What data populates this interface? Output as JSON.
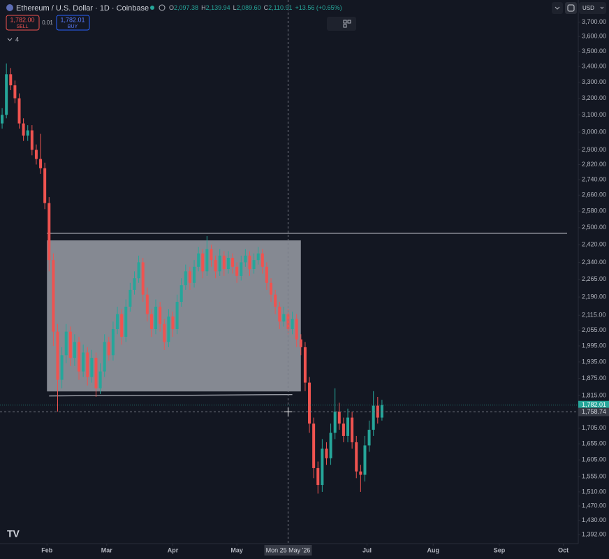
{
  "chart_data": {
    "type": "candlestick",
    "title": "Ethereum / U.S. Dollar · 1D · Coinbase",
    "ohlc": [
      {
        "label": "O",
        "value": "2,097.38"
      },
      {
        "label": "H",
        "value": "2,139.94"
      },
      {
        "label": "L",
        "value": "2,089.60"
      },
      {
        "label": "C",
        "value": "2,110.91"
      }
    ],
    "change": "+13.56 (+0.65%)",
    "trade": {
      "sell_price": "1,782.00",
      "sell_label": "SELL",
      "spread": "0.01",
      "buy_price": "1,782.01",
      "buy_label": "BUY"
    },
    "indicators_count": "4",
    "currency": "USD",
    "log_scale": true,
    "up_color": "#26a69a",
    "down_color": "#ef5350",
    "xlim": [
      10,
      281
    ],
    "xticks": [
      {
        "value": 32,
        "label": "Feb"
      },
      {
        "value": 60,
        "label": "Mar"
      },
      {
        "value": 91,
        "label": "Apr"
      },
      {
        "value": 121,
        "label": "May"
      },
      {
        "value": 182,
        "label": "Jul"
      },
      {
        "value": 213,
        "label": "Aug"
      },
      {
        "value": 244,
        "label": "Sep"
      },
      {
        "value": 274,
        "label": "Oct"
      }
    ],
    "ylim": [
      1368,
      3860
    ],
    "yticks": [
      {
        "value": 3700,
        "label": "3,700.00"
      },
      {
        "value": 3600,
        "label": "3,600.00"
      },
      {
        "value": 3500,
        "label": "3,500.00"
      },
      {
        "value": 3400,
        "label": "3,400.00"
      },
      {
        "value": 3300,
        "label": "3,300.00"
      },
      {
        "value": 3200,
        "label": "3,200.00"
      },
      {
        "value": 3100,
        "label": "3,100.00"
      },
      {
        "value": 3000,
        "label": "3,000.00"
      },
      {
        "value": 2900,
        "label": "2,900.00"
      },
      {
        "value": 2820,
        "label": "2,820.00"
      },
      {
        "value": 2740,
        "label": "2,740.00"
      },
      {
        "value": 2660,
        "label": "2,660.00"
      },
      {
        "value": 2580,
        "label": "2,580.00"
      },
      {
        "value": 2500,
        "label": "2,500.00"
      },
      {
        "value": 2420,
        "label": "2,420.00"
      },
      {
        "value": 2340,
        "label": "2,340.00"
      },
      {
        "value": 2265,
        "label": "2,265.00"
      },
      {
        "value": 2190,
        "label": "2,190.00"
      },
      {
        "value": 2115,
        "label": "2,115.00"
      },
      {
        "value": 2055,
        "label": "2,055.00"
      },
      {
        "value": 1995,
        "label": "1,995.00"
      },
      {
        "value": 1935,
        "label": "1,935.00"
      },
      {
        "value": 1875,
        "label": "1,875.00"
      },
      {
        "value": 1815,
        "label": "1,815.00"
      },
      {
        "value": 1705,
        "label": "1,705.00"
      },
      {
        "value": 1655,
        "label": "1,655.00"
      },
      {
        "value": 1605,
        "label": "1,605.00"
      },
      {
        "value": 1555,
        "label": "1,555.00"
      },
      {
        "value": 1510,
        "label": "1,510.00"
      },
      {
        "value": 1470,
        "label": "1,470.00"
      },
      {
        "value": 1430,
        "label": "1,430.00"
      },
      {
        "value": 1392,
        "label": "1,392.00"
      }
    ],
    "last_price": {
      "value": 1782.01,
      "label": "1,782.01"
    },
    "crosshair": {
      "x": {
        "value": 145,
        "label": "Mon 25 May '26"
      },
      "y": {
        "value": 1758.74,
        "label": "1,758.74"
      }
    },
    "horizontal_line": 2473,
    "rectangle": {
      "x": [
        32,
        151
      ],
      "y": [
        1829,
        2440
      ]
    },
    "trend_line": {
      "x": [
        33,
        147
      ],
      "y": [
        1813,
        1818
      ]
    },
    "candles": [
      {
        "x": 11,
        "o": 3050,
        "h": 3140,
        "l": 3020,
        "c": 3100
      },
      {
        "x": 13,
        "o": 3100,
        "h": 3420,
        "l": 3080,
        "c": 3350
      },
      {
        "x": 15,
        "o": 3350,
        "h": 3390,
        "l": 3250,
        "c": 3280
      },
      {
        "x": 17,
        "o": 3280,
        "h": 3310,
        "l": 3170,
        "c": 3200
      },
      {
        "x": 19,
        "o": 3200,
        "h": 3230,
        "l": 3020,
        "c": 3050
      },
      {
        "x": 21,
        "o": 3050,
        "h": 3080,
        "l": 2950,
        "c": 2980
      },
      {
        "x": 23,
        "o": 2980,
        "h": 3040,
        "l": 2950,
        "c": 3010
      },
      {
        "x": 25,
        "o": 3010,
        "h": 3040,
        "l": 2870,
        "c": 2900
      },
      {
        "x": 27,
        "o": 2900,
        "h": 2930,
        "l": 2820,
        "c": 2850
      },
      {
        "x": 29,
        "o": 2850,
        "h": 2990,
        "l": 2770,
        "c": 2800
      },
      {
        "x": 31,
        "o": 2800,
        "h": 2830,
        "l": 2590,
        "c": 2620
      },
      {
        "x": 33,
        "o": 2620,
        "h": 2650,
        "l": 2300,
        "c": 2350
      },
      {
        "x": 35,
        "o": 2350,
        "h": 2380,
        "l": 1995,
        "c": 2050
      },
      {
        "x": 37,
        "o": 2050,
        "h": 2080,
        "l": 1760,
        "c": 1870
      },
      {
        "x": 39,
        "o": 1870,
        "h": 1990,
        "l": 1840,
        "c": 1960
      },
      {
        "x": 41,
        "o": 1960,
        "h": 2080,
        "l": 1930,
        "c": 2050
      },
      {
        "x": 43,
        "o": 2050,
        "h": 2070,
        "l": 1920,
        "c": 1950
      },
      {
        "x": 45,
        "o": 1950,
        "h": 2040,
        "l": 1920,
        "c": 2010
      },
      {
        "x": 47,
        "o": 2010,
        "h": 2030,
        "l": 1870,
        "c": 1900
      },
      {
        "x": 49,
        "o": 1900,
        "h": 2000,
        "l": 1880,
        "c": 1970
      },
      {
        "x": 51,
        "o": 1970,
        "h": 1990,
        "l": 1850,
        "c": 1880
      },
      {
        "x": 53,
        "o": 1880,
        "h": 1980,
        "l": 1860,
        "c": 1950
      },
      {
        "x": 55,
        "o": 1950,
        "h": 1970,
        "l": 1810,
        "c": 1840
      },
      {
        "x": 57,
        "o": 1840,
        "h": 1930,
        "l": 1820,
        "c": 1900
      },
      {
        "x": 59,
        "o": 1900,
        "h": 2040,
        "l": 1880,
        "c": 2010
      },
      {
        "x": 61,
        "o": 2010,
        "h": 2030,
        "l": 1940,
        "c": 1960
      },
      {
        "x": 63,
        "o": 1960,
        "h": 2090,
        "l": 1940,
        "c": 2060
      },
      {
        "x": 65,
        "o": 2060,
        "h": 2150,
        "l": 2040,
        "c": 2120
      },
      {
        "x": 67,
        "o": 2120,
        "h": 2140,
        "l": 2000,
        "c": 2030
      },
      {
        "x": 69,
        "o": 2030,
        "h": 2180,
        "l": 2010,
        "c": 2150
      },
      {
        "x": 71,
        "o": 2150,
        "h": 2250,
        "l": 2130,
        "c": 2220
      },
      {
        "x": 73,
        "o": 2220,
        "h": 2300,
        "l": 2200,
        "c": 2270
      },
      {
        "x": 75,
        "o": 2270,
        "h": 2370,
        "l": 2250,
        "c": 2340
      },
      {
        "x": 77,
        "o": 2340,
        "h": 2360,
        "l": 2170,
        "c": 2200
      },
      {
        "x": 79,
        "o": 2200,
        "h": 2230,
        "l": 2090,
        "c": 2120
      },
      {
        "x": 81,
        "o": 2120,
        "h": 2140,
        "l": 2030,
        "c": 2060
      },
      {
        "x": 83,
        "o": 2060,
        "h": 2180,
        "l": 2040,
        "c": 2150
      },
      {
        "x": 85,
        "o": 2150,
        "h": 2170,
        "l": 2050,
        "c": 2080
      },
      {
        "x": 87,
        "o": 2080,
        "h": 2100,
        "l": 1980,
        "c": 2010
      },
      {
        "x": 89,
        "o": 2010,
        "h": 2140,
        "l": 1990,
        "c": 2110
      },
      {
        "x": 91,
        "o": 2110,
        "h": 2130,
        "l": 2030,
        "c": 2060
      },
      {
        "x": 93,
        "o": 2060,
        "h": 2200,
        "l": 2040,
        "c": 2170
      },
      {
        "x": 95,
        "o": 2170,
        "h": 2270,
        "l": 2150,
        "c": 2240
      },
      {
        "x": 97,
        "o": 2240,
        "h": 2330,
        "l": 2220,
        "c": 2300
      },
      {
        "x": 99,
        "o": 2300,
        "h": 2320,
        "l": 2220,
        "c": 2250
      },
      {
        "x": 101,
        "o": 2250,
        "h": 2350,
        "l": 2230,
        "c": 2320
      },
      {
        "x": 103,
        "o": 2320,
        "h": 2410,
        "l": 2300,
        "c": 2380
      },
      {
        "x": 105,
        "o": 2380,
        "h": 2400,
        "l": 2270,
        "c": 2300
      },
      {
        "x": 107,
        "o": 2300,
        "h": 2460,
        "l": 2280,
        "c": 2400
      },
      {
        "x": 109,
        "o": 2400,
        "h": 2420,
        "l": 2320,
        "c": 2350
      },
      {
        "x": 111,
        "o": 2350,
        "h": 2370,
        "l": 2270,
        "c": 2300
      },
      {
        "x": 113,
        "o": 2300,
        "h": 2400,
        "l": 2280,
        "c": 2370
      },
      {
        "x": 115,
        "o": 2370,
        "h": 2390,
        "l": 2280,
        "c": 2310
      },
      {
        "x": 117,
        "o": 2310,
        "h": 2390,
        "l": 2290,
        "c": 2360
      },
      {
        "x": 119,
        "o": 2360,
        "h": 2380,
        "l": 2290,
        "c": 2320
      },
      {
        "x": 121,
        "o": 2320,
        "h": 2340,
        "l": 2250,
        "c": 2280
      },
      {
        "x": 123,
        "o": 2280,
        "h": 2370,
        "l": 2260,
        "c": 2340
      },
      {
        "x": 125,
        "o": 2340,
        "h": 2400,
        "l": 2320,
        "c": 2370
      },
      {
        "x": 127,
        "o": 2370,
        "h": 2390,
        "l": 2280,
        "c": 2310
      },
      {
        "x": 129,
        "o": 2310,
        "h": 2380,
        "l": 2290,
        "c": 2350
      },
      {
        "x": 131,
        "o": 2350,
        "h": 2410,
        "l": 2330,
        "c": 2380
      },
      {
        "x": 133,
        "o": 2380,
        "h": 2400,
        "l": 2290,
        "c": 2320
      },
      {
        "x": 135,
        "o": 2320,
        "h": 2340,
        "l": 2220,
        "c": 2250
      },
      {
        "x": 137,
        "o": 2250,
        "h": 2270,
        "l": 2170,
        "c": 2200
      },
      {
        "x": 139,
        "o": 2200,
        "h": 2220,
        "l": 2120,
        "c": 2150
      },
      {
        "x": 141,
        "o": 2150,
        "h": 2170,
        "l": 2060,
        "c": 2090
      },
      {
        "x": 143,
        "o": 2090,
        "h": 2150,
        "l": 2070,
        "c": 2120
      },
      {
        "x": 145,
        "o": 2120,
        "h": 2140,
        "l": 2040,
        "c": 2060
      },
      {
        "x": 147,
        "o": 2060,
        "h": 2130,
        "l": 2040,
        "c": 2100
      },
      {
        "x": 149,
        "o": 2100,
        "h": 2120,
        "l": 1990,
        "c": 2020
      },
      {
        "x": 151,
        "o": 2020,
        "h": 2040,
        "l": 1960,
        "c": 1990
      },
      {
        "x": 153,
        "o": 1990,
        "h": 2010,
        "l": 1830,
        "c": 1860
      },
      {
        "x": 155,
        "o": 1860,
        "h": 1880,
        "l": 1690,
        "c": 1720
      },
      {
        "x": 157,
        "o": 1720,
        "h": 1740,
        "l": 1550,
        "c": 1580
      },
      {
        "x": 159,
        "o": 1580,
        "h": 1600,
        "l": 1505,
        "c": 1530
      },
      {
        "x": 161,
        "o": 1530,
        "h": 1670,
        "l": 1510,
        "c": 1640
      },
      {
        "x": 163,
        "o": 1640,
        "h": 1660,
        "l": 1590,
        "c": 1610
      },
      {
        "x": 165,
        "o": 1610,
        "h": 1720,
        "l": 1590,
        "c": 1690
      },
      {
        "x": 167,
        "o": 1690,
        "h": 1840,
        "l": 1670,
        "c": 1760
      },
      {
        "x": 169,
        "o": 1760,
        "h": 1790,
        "l": 1700,
        "c": 1720
      },
      {
        "x": 171,
        "o": 1720,
        "h": 1740,
        "l": 1660,
        "c": 1680
      },
      {
        "x": 173,
        "o": 1680,
        "h": 1770,
        "l": 1660,
        "c": 1740
      },
      {
        "x": 175,
        "o": 1740,
        "h": 1760,
        "l": 1640,
        "c": 1660
      },
      {
        "x": 177,
        "o": 1660,
        "h": 1680,
        "l": 1550,
        "c": 1570
      },
      {
        "x": 179,
        "o": 1570,
        "h": 1590,
        "l": 1510,
        "c": 1560
      },
      {
        "x": 181,
        "o": 1560,
        "h": 1680,
        "l": 1540,
        "c": 1650
      },
      {
        "x": 183,
        "o": 1650,
        "h": 1730,
        "l": 1630,
        "c": 1700
      },
      {
        "x": 185,
        "o": 1700,
        "h": 1830,
        "l": 1680,
        "c": 1780
      },
      {
        "x": 187,
        "o": 1780,
        "h": 1810,
        "l": 1720,
        "c": 1740
      },
      {
        "x": 189,
        "o": 1740,
        "h": 1800,
        "l": 1730,
        "c": 1782
      }
    ]
  }
}
